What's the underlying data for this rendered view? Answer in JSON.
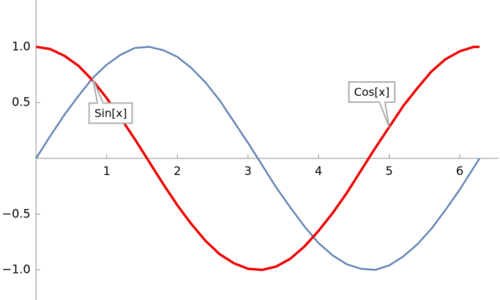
{
  "chart_data": {
    "type": "line",
    "x": [
      0,
      0.2,
      0.4,
      0.6,
      0.8,
      1.0,
      1.2,
      1.4,
      1.6,
      1.8,
      2.0,
      2.2,
      2.4,
      2.6,
      2.8,
      3.0,
      3.2,
      3.4,
      3.6,
      3.8,
      4.0,
      4.2,
      4.4,
      4.6,
      4.8,
      5.0,
      5.2,
      5.4,
      5.6,
      5.8,
      6.0,
      6.2,
      6.28
    ],
    "series": [
      {
        "name": "Sin[x]",
        "color": "#5e81b5",
        "values": [
          0,
          0.2,
          0.39,
          0.56,
          0.72,
          0.84,
          0.93,
          0.99,
          1.0,
          0.97,
          0.91,
          0.81,
          0.68,
          0.52,
          0.33,
          0.14,
          -0.06,
          -0.26,
          -0.44,
          -0.61,
          -0.76,
          -0.87,
          -0.95,
          -0.99,
          -1.0,
          -0.96,
          -0.88,
          -0.77,
          -0.63,
          -0.46,
          -0.28,
          -0.08,
          0.0
        ]
      },
      {
        "name": "Cos[x]",
        "color": "#ee0000",
        "values": [
          1.0,
          0.98,
          0.92,
          0.83,
          0.7,
          0.54,
          0.36,
          0.17,
          -0.03,
          -0.23,
          -0.42,
          -0.59,
          -0.74,
          -0.86,
          -0.94,
          -0.99,
          -1.0,
          -0.97,
          -0.9,
          -0.79,
          -0.65,
          -0.49,
          -0.31,
          -0.11,
          0.09,
          0.28,
          0.47,
          0.63,
          0.78,
          0.89,
          0.96,
          1.0,
          1.0
        ]
      }
    ],
    "xlim": [
      0,
      6.55
    ],
    "ylim": [
      -1.27,
      1.42
    ],
    "xticks": [
      1,
      2,
      3,
      4,
      5,
      6
    ],
    "yticks": [
      {
        "value": -1.0,
        "label": "−1.0"
      },
      {
        "value": -0.5,
        "label": "−0.5"
      },
      {
        "value": 0.5,
        "label": "0.5"
      },
      {
        "value": 1.0,
        "label": "1.0"
      }
    ]
  }
}
